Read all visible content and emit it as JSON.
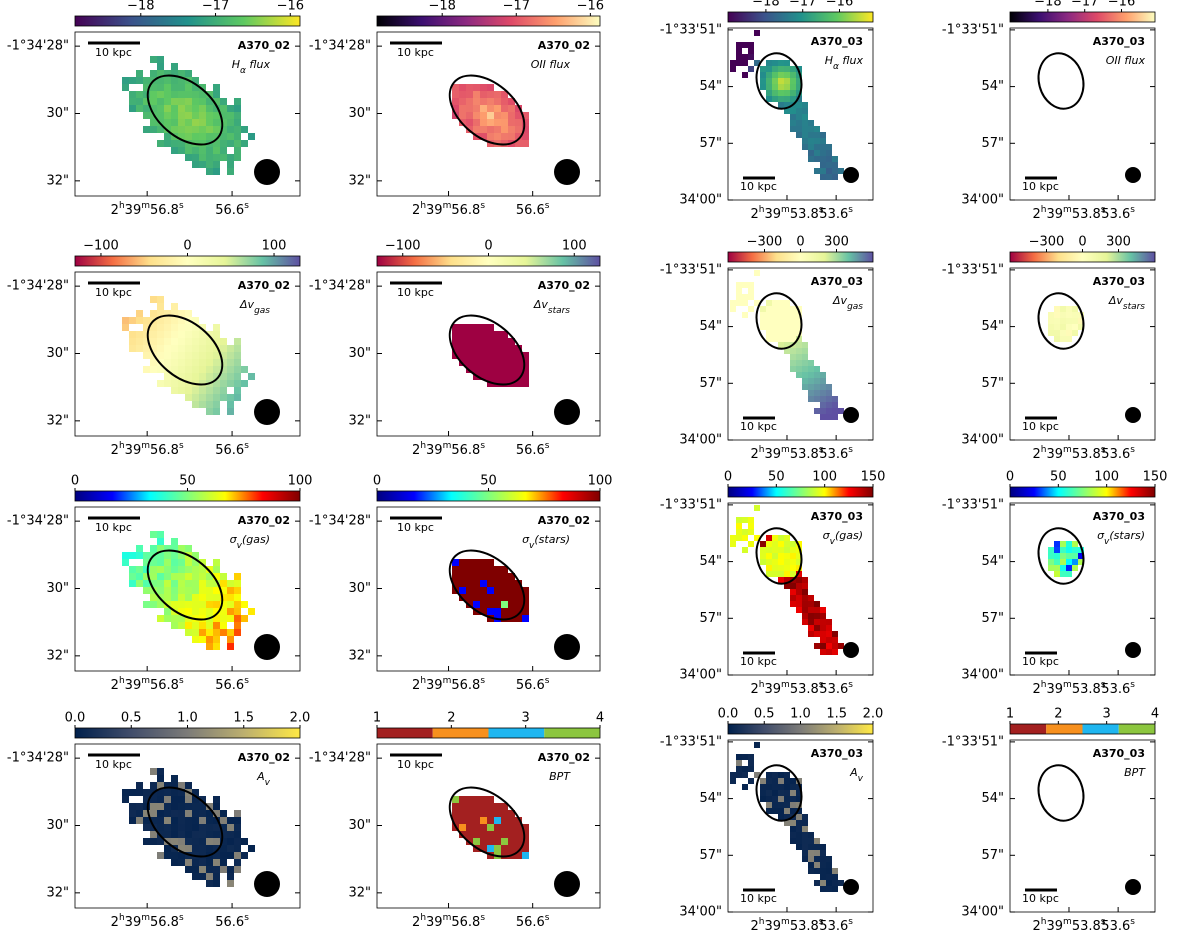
{
  "chart_data": [
    {
      "type": "image",
      "title": "A370_02",
      "label": [
        "H",
        "α",
        " flux"
      ],
      "scalebar": "10 kpc",
      "cmap": [
        "#440154",
        "#3b528b",
        "#21918c",
        "#5ec962",
        "#fde725"
      ],
      "clim": [
        -18.88,
        -15.87
      ],
      "cticks": [
        {
          "value": -18,
          "label": "−18"
        },
        {
          "value": -17,
          "label": "−17"
        },
        {
          "value": -16,
          "label": "−16"
        }
      ],
      "xlim": [
        56.97,
        56.44
      ],
      "xticks": [
        {
          "value": 56.8,
          "label": [
            "2",
            "h",
            "39",
            "m",
            "56.8",
            "s"
          ]
        },
        {
          "value": 56.6,
          "label": [
            "56.6",
            "s"
          ]
        }
      ],
      "ylim": [
        27.58,
        32.45
      ],
      "yticks": [
        {
          "value": 28,
          "label": "-1°34'28\""
        },
        {
          "value": 30,
          "label": "30\""
        },
        {
          "value": 32,
          "label": "32\""
        }
      ]
    },
    {
      "type": "image",
      "title": "A370_02",
      "label": [
        "OII flux"
      ],
      "scalebar": "10 kpc",
      "cmap": [
        "#000004",
        "#3b0f70",
        "#8c2981",
        "#de4968",
        "#fe9f6d",
        "#fcfdbf"
      ],
      "clim": [
        -18.88,
        -15.87
      ],
      "cticks": [
        {
          "value": -18,
          "label": "−18"
        },
        {
          "value": -17,
          "label": "−17"
        },
        {
          "value": -16,
          "label": "−16"
        }
      ],
      "xlim": [
        56.97,
        56.44
      ],
      "xticks": [
        {
          "value": 56.8,
          "label": [
            "2",
            "h",
            "39",
            "m",
            "56.8",
            "s"
          ]
        },
        {
          "value": 56.6,
          "label": [
            "56.6",
            "s"
          ]
        }
      ],
      "ylim": [
        27.58,
        32.45
      ],
      "yticks": [
        {
          "value": 28,
          "label": "-1°34'28\""
        },
        {
          "value": 30,
          "label": "30\""
        },
        {
          "value": 32,
          "label": "32\""
        }
      ]
    },
    {
      "type": "image",
      "title": "A370_03",
      "label": [
        "H",
        "α",
        " flux"
      ],
      "scalebar": "10 kpc",
      "cmap": [
        "#440154",
        "#3b528b",
        "#21918c",
        "#5ec962",
        "#fde725"
      ],
      "clim": [
        -19.03,
        -15.09
      ],
      "cticks": [
        {
          "value": -18,
          "label": "−18"
        },
        {
          "value": -17,
          "label": "−17"
        },
        {
          "value": -16,
          "label": "−16"
        }
      ],
      "xlim": [
        54.04,
        53.45
      ],
      "xticks": [
        {
          "value": 53.8,
          "label": [
            "2",
            "h",
            "39",
            "m",
            "53.8",
            "s"
          ]
        },
        {
          "value": 53.6,
          "label": [
            "53.6",
            "s"
          ]
        }
      ],
      "ylim": [
        50.9,
        60.0
      ],
      "yticks": [
        {
          "value": 51,
          "label": "-1°33'51\""
        },
        {
          "value": 54,
          "label": "54\""
        },
        {
          "value": 57,
          "label": "57\""
        },
        {
          "value": 60,
          "label": "34'00\""
        }
      ]
    },
    {
      "type": "image",
      "title": "A370_03",
      "label": [
        "OII flux"
      ],
      "scalebar": "10 kpc",
      "cmap": [
        "#000004",
        "#3b0f70",
        "#8c2981",
        "#de4968",
        "#fe9f6d",
        "#fcfdbf"
      ],
      "clim": [
        -19.03,
        -15.09
      ],
      "cticks": [
        {
          "value": -18,
          "label": "−18"
        },
        {
          "value": -17,
          "label": "−17"
        },
        {
          "value": -16,
          "label": "−16"
        }
      ],
      "xlim": [
        54.04,
        53.45
      ],
      "xticks": [
        {
          "value": 53.8,
          "label": [
            "2",
            "h",
            "39",
            "m",
            "53.8",
            "s"
          ]
        },
        {
          "value": 53.6,
          "label": [
            "53.6",
            "s"
          ]
        }
      ],
      "ylim": [
        50.9,
        60.0
      ],
      "yticks": [
        {
          "value": 51,
          "label": "-1°33'51\""
        },
        {
          "value": 54,
          "label": "54\""
        },
        {
          "value": 57,
          "label": "57\""
        },
        {
          "value": 60,
          "label": "34'00\""
        }
      ]
    },
    {
      "type": "image",
      "title": "A370_02",
      "label": [
        "Δv",
        "gas"
      ],
      "scalebar": "10 kpc",
      "cmap": [
        "#9e0142",
        "#f46d43",
        "#fee08b",
        "#ffffbf",
        "#e6f598",
        "#66c2a5",
        "#5e4fa2"
      ],
      "clim": [
        -130,
        130
      ],
      "cticks": [
        {
          "value": -100,
          "label": "−100"
        },
        0,
        100
      ],
      "xlim": [
        56.97,
        56.44
      ],
      "xticks": [
        {
          "value": 56.8,
          "label": [
            "2",
            "h",
            "39",
            "m",
            "56.8",
            "s"
          ]
        },
        {
          "value": 56.6,
          "label": [
            "56.6",
            "s"
          ]
        }
      ],
      "ylim": [
        27.58,
        32.45
      ],
      "yticks": [
        {
          "value": 28,
          "label": "-1°34'28\""
        },
        {
          "value": 30,
          "label": "30\""
        },
        {
          "value": 32,
          "label": "32\""
        }
      ]
    },
    {
      "type": "image",
      "title": "A370_02",
      "label": [
        "Δv",
        "stars"
      ],
      "scalebar": "10 kpc",
      "cmap": [
        "#9e0142",
        "#f46d43",
        "#fee08b",
        "#ffffbf",
        "#e6f598",
        "#66c2a5",
        "#5e4fa2"
      ],
      "clim": [
        -130,
        130
      ],
      "cticks": [
        {
          "value": -100,
          "label": "−100"
        },
        0,
        100
      ],
      "xlim": [
        56.97,
        56.44
      ],
      "xticks": [
        {
          "value": 56.8,
          "label": [
            "2",
            "h",
            "39",
            "m",
            "56.8",
            "s"
          ]
        },
        {
          "value": 56.6,
          "label": [
            "56.6",
            "s"
          ]
        }
      ],
      "ylim": [
        27.58,
        32.45
      ],
      "yticks": [
        {
          "value": 28,
          "label": "-1°34'28\""
        },
        {
          "value": 30,
          "label": "30\""
        },
        {
          "value": 32,
          "label": "32\""
        }
      ]
    },
    {
      "type": "image",
      "title": "A370_03",
      "label": [
        "Δv",
        "gas"
      ],
      "scalebar": "10 kpc",
      "cmap": [
        "#9e0142",
        "#f46d43",
        "#fee08b",
        "#ffffbf",
        "#e6f598",
        "#66c2a5",
        "#5e4fa2"
      ],
      "clim": [
        -604,
        604
      ],
      "cticks": [
        {
          "value": -300,
          "label": "−300"
        },
        0,
        300
      ],
      "xlim": [
        54.04,
        53.45
      ],
      "xticks": [
        {
          "value": 53.8,
          "label": [
            "2",
            "h",
            "39",
            "m",
            "53.8",
            "s"
          ]
        },
        {
          "value": 53.6,
          "label": [
            "53.6",
            "s"
          ]
        }
      ],
      "ylim": [
        50.9,
        60.0
      ],
      "yticks": [
        {
          "value": 51,
          "label": "-1°33'51\""
        },
        {
          "value": 54,
          "label": "54\""
        },
        {
          "value": 57,
          "label": "57\""
        },
        {
          "value": 60,
          "label": "34'00\""
        }
      ]
    },
    {
      "type": "image",
      "title": "A370_03",
      "label": [
        "Δv",
        "stars"
      ],
      "scalebar": "10 kpc",
      "cmap": [
        "#9e0142",
        "#f46d43",
        "#fee08b",
        "#ffffbf",
        "#e6f598",
        "#66c2a5",
        "#5e4fa2"
      ],
      "clim": [
        -604,
        604
      ],
      "cticks": [
        {
          "value": -300,
          "label": "−300"
        },
        0,
        300
      ],
      "xlim": [
        54.04,
        53.45
      ],
      "xticks": [
        {
          "value": 53.8,
          "label": [
            "2",
            "h",
            "39",
            "m",
            "53.8",
            "s"
          ]
        },
        {
          "value": 53.6,
          "label": [
            "53.6",
            "s"
          ]
        }
      ],
      "ylim": [
        50.9,
        60.0
      ],
      "yticks": [
        {
          "value": 51,
          "label": "-1°33'51\""
        },
        {
          "value": 54,
          "label": "54\""
        },
        {
          "value": 57,
          "label": "57\""
        },
        {
          "value": 60,
          "label": "34'00\""
        }
      ]
    },
    {
      "type": "image",
      "title": "A370_02",
      "label": [
        "σ",
        "v",
        "(gas)"
      ],
      "scalebar": "10 kpc",
      "cmap": [
        "#00007f",
        "#0000ff",
        "#00ffff",
        "#7fff7f",
        "#ffff00",
        "#ff0000",
        "#7f0000"
      ],
      "clim": [
        0,
        100
      ],
      "cticks": [
        0,
        50,
        100
      ],
      "xlim": [
        56.97,
        56.44
      ],
      "xticks": [
        {
          "value": 56.8,
          "label": [
            "2",
            "h",
            "39",
            "m",
            "56.8",
            "s"
          ]
        },
        {
          "value": 56.6,
          "label": [
            "56.6",
            "s"
          ]
        }
      ],
      "ylim": [
        27.58,
        32.45
      ],
      "yticks": [
        {
          "value": 28,
          "label": "-1°34'28\""
        },
        {
          "value": 30,
          "label": "30\""
        },
        {
          "value": 32,
          "label": "32\""
        }
      ]
    },
    {
      "type": "image",
      "title": "A370_02",
      "label": [
        "σ",
        "v",
        "(stars)"
      ],
      "scalebar": "10 kpc",
      "cmap": [
        "#00007f",
        "#0000ff",
        "#00ffff",
        "#7fff7f",
        "#ffff00",
        "#ff0000",
        "#7f0000"
      ],
      "clim": [
        0,
        100
      ],
      "cticks": [
        0,
        50,
        100
      ],
      "xlim": [
        56.97,
        56.44
      ],
      "xticks": [
        {
          "value": 56.8,
          "label": [
            "2",
            "h",
            "39",
            "m",
            "56.8",
            "s"
          ]
        },
        {
          "value": 56.6,
          "label": [
            "56.6",
            "s"
          ]
        }
      ],
      "ylim": [
        27.58,
        32.45
      ],
      "yticks": [
        {
          "value": 28,
          "label": "-1°34'28\""
        },
        {
          "value": 30,
          "label": "30\""
        },
        {
          "value": 32,
          "label": "32\""
        }
      ]
    },
    {
      "type": "image",
      "title": "A370_03",
      "label": [
        "σ",
        "v",
        "(gas)"
      ],
      "scalebar": "10 kpc",
      "cmap": [
        "#00007f",
        "#0000ff",
        "#00ffff",
        "#7fff7f",
        "#ffff00",
        "#ff0000",
        "#7f0000"
      ],
      "clim": [
        0,
        150
      ],
      "cticks": [
        0,
        50,
        100,
        150
      ],
      "xlim": [
        54.04,
        53.45
      ],
      "xticks": [
        {
          "value": 53.8,
          "label": [
            "2",
            "h",
            "39",
            "m",
            "53.8",
            "s"
          ]
        },
        {
          "value": 53.6,
          "label": [
            "53.6",
            "s"
          ]
        }
      ],
      "ylim": [
        50.9,
        60.0
      ],
      "yticks": [
        {
          "value": 51,
          "label": "-1°33'51\""
        },
        {
          "value": 54,
          "label": "54\""
        },
        {
          "value": 57,
          "label": "57\""
        },
        {
          "value": 60,
          "label": "34'00\""
        }
      ]
    },
    {
      "type": "image",
      "title": "A370_03",
      "label": [
        "σ",
        "v",
        "(stars)"
      ],
      "scalebar": "10 kpc",
      "cmap": [
        "#00007f",
        "#0000ff",
        "#00ffff",
        "#7fff7f",
        "#ffff00",
        "#ff0000",
        "#7f0000"
      ],
      "clim": [
        0,
        150
      ],
      "cticks": [
        0,
        50,
        100,
        150
      ],
      "xlim": [
        54.04,
        53.45
      ],
      "xticks": [
        {
          "value": 53.8,
          "label": [
            "2",
            "h",
            "39",
            "m",
            "53.8",
            "s"
          ]
        },
        {
          "value": 53.6,
          "label": [
            "53.6",
            "s"
          ]
        }
      ],
      "ylim": [
        50.9,
        60.0
      ],
      "yticks": [
        {
          "value": 51,
          "label": "-1°33'51\""
        },
        {
          "value": 54,
          "label": "54\""
        },
        {
          "value": 57,
          "label": "57\""
        },
        {
          "value": 60,
          "label": "34'00\""
        }
      ]
    },
    {
      "type": "image",
      "title": "A370_02",
      "label": [
        "A",
        "v"
      ],
      "scalebar": "10 kpc",
      "cmap": [
        "#00204c",
        "#414d6b",
        "#7c7b78",
        "#bcaf6f",
        "#ffe945"
      ],
      "clim": [
        0,
        2
      ],
      "cticks": [
        {
          "value": 0,
          "label": "0.0"
        },
        0.5,
        {
          "value": 1,
          "label": "1.0"
        },
        1.5,
        {
          "value": 2,
          "label": "2.0"
        }
      ],
      "xlim": [
        56.97,
        56.44
      ],
      "xticks": [
        {
          "value": 56.8,
          "label": [
            "2",
            "h",
            "39",
            "m",
            "56.8",
            "s"
          ]
        },
        {
          "value": 56.6,
          "label": [
            "56.6",
            "s"
          ]
        }
      ],
      "ylim": [
        27.58,
        32.45
      ],
      "yticks": [
        {
          "value": 28,
          "label": "-1°34'28\""
        },
        {
          "value": 30,
          "label": "30\""
        },
        {
          "value": 32,
          "label": "32\""
        }
      ]
    },
    {
      "type": "image",
      "title": "A370_02",
      "label": [
        "BPT"
      ],
      "scalebar": "10 kpc",
      "discrete": true,
      "cmap": [
        "#a32020",
        "#f7901e",
        "#1fb6f0",
        "#8cc63f"
      ],
      "clim": [
        1,
        4
      ],
      "cticks": [
        1,
        2,
        3,
        4
      ],
      "xlim": [
        56.97,
        56.44
      ],
      "xticks": [
        {
          "value": 56.8,
          "label": [
            "2",
            "h",
            "39",
            "m",
            "56.8",
            "s"
          ]
        },
        {
          "value": 56.6,
          "label": [
            "56.6",
            "s"
          ]
        }
      ],
      "ylim": [
        27.58,
        32.45
      ],
      "yticks": [
        {
          "value": 28,
          "label": "-1°34'28\""
        },
        {
          "value": 30,
          "label": "30\""
        },
        {
          "value": 32,
          "label": "32\""
        }
      ]
    },
    {
      "type": "image",
      "title": "A370_03",
      "label": [
        "A",
        "v"
      ],
      "scalebar": "10 kpc",
      "cmap": [
        "#00204c",
        "#414d6b",
        "#7c7b78",
        "#bcaf6f",
        "#ffe945"
      ],
      "clim": [
        0,
        2
      ],
      "cticks": [
        {
          "value": 0,
          "label": "0.0"
        },
        0.5,
        {
          "value": 1,
          "label": "1.0"
        },
        1.5,
        {
          "value": 2,
          "label": "2.0"
        }
      ],
      "xlim": [
        54.04,
        53.45
      ],
      "xticks": [
        {
          "value": 53.8,
          "label": [
            "2",
            "h",
            "39",
            "m",
            "53.8",
            "s"
          ]
        },
        {
          "value": 53.6,
          "label": [
            "53.6",
            "s"
          ]
        }
      ],
      "ylim": [
        50.9,
        60.0
      ],
      "yticks": [
        {
          "value": 51,
          "label": "-1°33'51\""
        },
        {
          "value": 54,
          "label": "54\""
        },
        {
          "value": 57,
          "label": "57\""
        },
        {
          "value": 60,
          "label": "34'00\""
        }
      ]
    },
    {
      "type": "image",
      "title": "A370_03",
      "label": [
        "BPT"
      ],
      "scalebar": "10 kpc",
      "discrete": true,
      "cmap": [
        "#a32020",
        "#f7901e",
        "#1fb6f0",
        "#8cc63f"
      ],
      "clim": [
        1,
        4
      ],
      "cticks": [
        1,
        2,
        3,
        4
      ],
      "xlim": [
        54.04,
        53.45
      ],
      "xticks": [
        {
          "value": 53.8,
          "label": [
            "2",
            "h",
            "39",
            "m",
            "53.8",
            "s"
          ]
        },
        {
          "value": 53.6,
          "label": [
            "53.6",
            "s"
          ]
        }
      ],
      "ylim": [
        50.9,
        60.0
      ],
      "yticks": [
        {
          "value": 51,
          "label": "-1°33'51\""
        },
        {
          "value": 54,
          "label": "54\""
        },
        {
          "value": 57,
          "label": "57\""
        },
        {
          "value": 60,
          "label": "34'00\""
        }
      ]
    }
  ]
}
